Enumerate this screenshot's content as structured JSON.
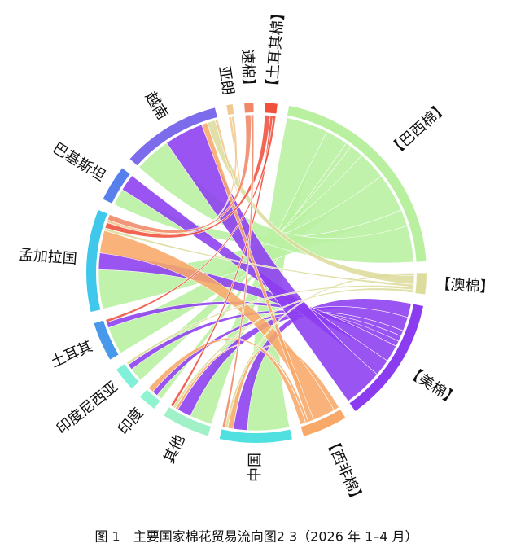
{
  "chart_data": {
    "type": "chord",
    "caption": "图 1　主要国家棉花贸易流向图2 3（2026 年 1–4 月）",
    "nodes": [
      {
        "name": "【土耳其棉】",
        "color": "#f0503c"
      },
      {
        "name": "【巴西棉】",
        "color": "#b8f0a0"
      },
      {
        "name": "【澳棉】",
        "color": "#dcdc9c"
      },
      {
        "name": "【美棉】",
        "color": "#8c3cf0"
      },
      {
        "name": "【西非棉】",
        "color": "#f8a868"
      },
      {
        "name": "中国",
        "color": "#50e0e0"
      },
      {
        "name": "其他",
        "color": "#a0f0c8"
      },
      {
        "name": "印度",
        "color": "#90f4d0"
      },
      {
        "name": "印度尼西亚",
        "color": "#80f0d8"
      },
      {
        "name": "土耳其",
        "color": "#4898ec"
      },
      {
        "name": "孟加拉国",
        "color": "#40c8ec"
      },
      {
        "name": "巴基斯坦",
        "color": "#5880ec"
      },
      {
        "name": "越南",
        "color": "#7c6cec"
      },
      {
        "name": "亚朗",
        "color": "#f0c890"
      },
      {
        "name": "速棉】",
        "color": "#f08868"
      }
    ],
    "flows": [
      {
        "source": 1,
        "target": 5,
        "value": 15
      },
      {
        "source": 1,
        "target": 6,
        "value": 8
      },
      {
        "source": 1,
        "target": 7,
        "value": 2
      },
      {
        "source": 1,
        "target": 8,
        "value": 5
      },
      {
        "source": 1,
        "target": 9,
        "value": 10
      },
      {
        "source": 1,
        "target": 10,
        "value": 14
      },
      {
        "source": 1,
        "target": 11,
        "value": 6
      },
      {
        "source": 1,
        "target": 12,
        "value": 13
      },
      {
        "source": 3,
        "target": 5,
        "value": 5
      },
      {
        "source": 3,
        "target": 6,
        "value": 5
      },
      {
        "source": 3,
        "target": 7,
        "value": 2
      },
      {
        "source": 3,
        "target": 8,
        "value": 2
      },
      {
        "source": 3,
        "target": 9,
        "value": 2
      },
      {
        "source": 3,
        "target": 10,
        "value": 6
      },
      {
        "source": 3,
        "target": 11,
        "value": 6
      },
      {
        "source": 3,
        "target": 12,
        "value": 14
      },
      {
        "source": 4,
        "target": 5,
        "value": 2
      },
      {
        "source": 4,
        "target": 10,
        "value": 8
      },
      {
        "source": 4,
        "target": 12,
        "value": 2
      },
      {
        "source": 4,
        "target": 6,
        "value": 1
      },
      {
        "source": 4,
        "target": 7,
        "value": 2
      },
      {
        "source": 2,
        "target": 5,
        "value": 1
      },
      {
        "source": 2,
        "target": 12,
        "value": 3
      },
      {
        "source": 2,
        "target": 10,
        "value": 1
      },
      {
        "source": 2,
        "target": 8,
        "value": 1
      },
      {
        "source": 2,
        "target": 6,
        "value": 1
      },
      {
        "source": 0,
        "target": 10,
        "value": 2
      },
      {
        "source": 0,
        "target": 6,
        "value": 1
      },
      {
        "source": 0,
        "target": 9,
        "value": 1
      },
      {
        "source": 13,
        "target": 12,
        "value": 1
      },
      {
        "source": 13,
        "target": 10,
        "value": 1
      },
      {
        "source": 14,
        "target": 10,
        "value": 2
      },
      {
        "source": 14,
        "target": 5,
        "value": 1
      }
    ]
  }
}
